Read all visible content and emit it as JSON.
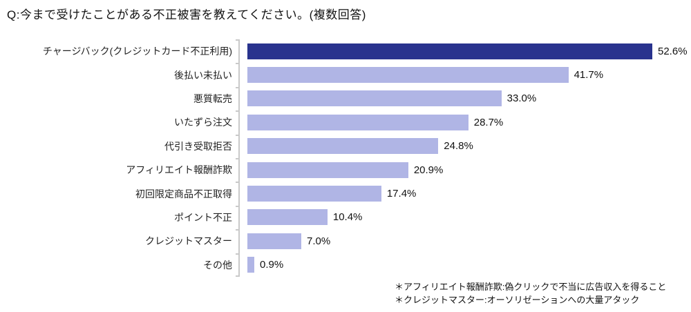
{
  "title": "Q:今まで受けたことがある不正被害を教えてください。(複数回答)",
  "chart_data": {
    "type": "bar",
    "orientation": "horizontal",
    "title": "Q:今まで受けたことがある不正被害を教えてください。(複数回答)",
    "categories": [
      "チャージバック(クレジットカード不正利用)",
      "後払い未払い",
      "悪質転売",
      "いたずら注文",
      "代引き受取拒否",
      "アフィリエイト報酬詐欺",
      "初回限定商品不正取得",
      "ポイント不正",
      "クレジットマスター",
      "その他"
    ],
    "values": [
      52.6,
      41.7,
      33.0,
      28.7,
      24.8,
      20.9,
      17.4,
      10.4,
      7.0,
      0.9
    ],
    "value_labels": [
      "52.6%",
      "41.7%",
      "33.0%",
      "28.7%",
      "24.8%",
      "20.9%",
      "17.4%",
      "10.4%",
      "7.0%",
      "0.9%"
    ],
    "unit": "%",
    "xlim": [
      0,
      55
    ],
    "grid": false,
    "legend": "none",
    "highlight_index": 0,
    "colors": {
      "highlight_bar": "#29338E",
      "default_bar": "#B0B5E5",
      "axis": "#C9C9C9",
      "text": "#111111"
    }
  },
  "footnotes": [
    "＊アフィリエイト報酬詐欺:偽クリックで不当に広告収入を得ること",
    "＊クレジットマスター:オーソリゼーションへの大量アタック"
  ]
}
